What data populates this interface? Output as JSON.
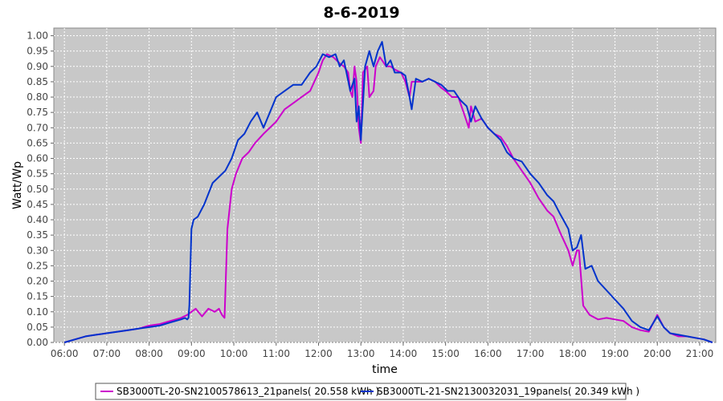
{
  "chart_data": {
    "type": "line",
    "title": "8-6-2019",
    "xlabel": "time",
    "ylabel": "Watt/Wp",
    "xlim": [
      5.75,
      21.38
    ],
    "ylim": [
      0,
      1.025
    ],
    "x_ticks": [
      "06:00",
      "07:00",
      "08:00",
      "09:00",
      "10:00",
      "11:00",
      "12:00",
      "13:00",
      "14:00",
      "15:00",
      "16:00",
      "17:00",
      "18:00",
      "19:00",
      "20:00",
      "21:00"
    ],
    "y_ticks": [
      "0.00",
      "0.05",
      "0.10",
      "0.15",
      "0.20",
      "0.25",
      "0.30",
      "0.35",
      "0.40",
      "0.45",
      "0.50",
      "0.55",
      "0.60",
      "0.65",
      "0.70",
      "0.75",
      "0.80",
      "0.85",
      "0.90",
      "0.95",
      "1.00"
    ],
    "grid": true,
    "legend_position": "bottom",
    "series": [
      {
        "name": "SB3000TL-20-SN2100578613_21panels( 20.558 kWh )",
        "color": "#cc00cc",
        "x": [
          6.0,
          6.25,
          6.5,
          6.75,
          7.0,
          7.25,
          7.5,
          7.75,
          8.0,
          8.25,
          8.5,
          8.75,
          8.9,
          9.0,
          9.1,
          9.25,
          9.4,
          9.55,
          9.65,
          9.72,
          9.78,
          9.85,
          9.95,
          10.05,
          10.2,
          10.35,
          10.5,
          10.7,
          10.85,
          11.0,
          11.2,
          11.4,
          11.6,
          11.8,
          12.0,
          12.1,
          12.2,
          12.35,
          12.5,
          12.6,
          12.7,
          12.75,
          12.8,
          12.85,
          12.9,
          12.95,
          13.0,
          13.05,
          13.15,
          13.2,
          13.3,
          13.35,
          13.45,
          13.6,
          13.7,
          13.8,
          13.95,
          14.05,
          14.15,
          14.2,
          14.3,
          14.45,
          14.6,
          14.75,
          14.9,
          15.0,
          15.15,
          15.3,
          15.45,
          15.55,
          15.6,
          15.7,
          15.85,
          16.0,
          16.15,
          16.3,
          16.45,
          16.6,
          16.8,
          17.0,
          17.2,
          17.4,
          17.55,
          17.7,
          17.9,
          18.0,
          18.1,
          18.15,
          18.25,
          18.4,
          18.6,
          18.8,
          19.0,
          19.2,
          19.4,
          19.6,
          19.8,
          20.0,
          20.15,
          20.3,
          20.5,
          20.7,
          20.9,
          21.1,
          21.3
        ],
        "y": [
          0.0,
          0.01,
          0.02,
          0.025,
          0.03,
          0.035,
          0.04,
          0.045,
          0.055,
          0.06,
          0.07,
          0.08,
          0.09,
          0.1,
          0.11,
          0.085,
          0.11,
          0.1,
          0.11,
          0.09,
          0.08,
          0.37,
          0.5,
          0.55,
          0.6,
          0.62,
          0.65,
          0.68,
          0.7,
          0.72,
          0.76,
          0.78,
          0.8,
          0.82,
          0.88,
          0.92,
          0.94,
          0.93,
          0.91,
          0.9,
          0.88,
          0.82,
          0.8,
          0.9,
          0.85,
          0.7,
          0.65,
          0.88,
          0.9,
          0.8,
          0.82,
          0.9,
          0.93,
          0.9,
          0.9,
          0.89,
          0.88,
          0.85,
          0.8,
          0.85,
          0.85,
          0.85,
          0.86,
          0.85,
          0.83,
          0.82,
          0.8,
          0.8,
          0.74,
          0.7,
          0.77,
          0.72,
          0.73,
          0.7,
          0.68,
          0.67,
          0.64,
          0.6,
          0.56,
          0.52,
          0.47,
          0.43,
          0.41,
          0.36,
          0.3,
          0.25,
          0.3,
          0.3,
          0.12,
          0.09,
          0.075,
          0.08,
          0.075,
          0.07,
          0.05,
          0.04,
          0.035,
          0.09,
          0.05,
          0.03,
          0.02,
          0.02,
          0.015,
          0.01,
          0.0
        ]
      },
      {
        "name": "SB3000TL-21-SN2130032031_19panels( 20.349 kWh )",
        "color": "#0033cc",
        "x": [
          6.0,
          6.25,
          6.5,
          6.75,
          7.0,
          7.25,
          7.5,
          7.75,
          8.0,
          8.25,
          8.5,
          8.75,
          8.85,
          8.9,
          8.93,
          8.95,
          9.0,
          9.05,
          9.15,
          9.3,
          9.5,
          9.65,
          9.8,
          9.95,
          10.1,
          10.25,
          10.4,
          10.55,
          10.7,
          10.85,
          11.0,
          11.2,
          11.4,
          11.6,
          11.8,
          11.95,
          12.1,
          12.25,
          12.4,
          12.5,
          12.6,
          12.75,
          12.85,
          12.9,
          12.95,
          13.0,
          13.1,
          13.2,
          13.3,
          13.4,
          13.5,
          13.6,
          13.7,
          13.8,
          13.95,
          14.05,
          14.15,
          14.2,
          14.3,
          14.45,
          14.6,
          14.75,
          14.9,
          15.05,
          15.2,
          15.35,
          15.5,
          15.6,
          15.7,
          15.85,
          16.0,
          16.15,
          16.3,
          16.45,
          16.6,
          16.8,
          17.0,
          17.2,
          17.4,
          17.55,
          17.7,
          17.9,
          18.0,
          18.1,
          18.2,
          18.3,
          18.45,
          18.6,
          18.8,
          19.0,
          19.2,
          19.4,
          19.6,
          19.8,
          20.0,
          20.15,
          20.3,
          20.5,
          20.7,
          20.9,
          21.1,
          21.3
        ],
        "y": [
          0.0,
          0.01,
          0.02,
          0.025,
          0.03,
          0.035,
          0.04,
          0.045,
          0.05,
          0.055,
          0.065,
          0.075,
          0.08,
          0.075,
          0.08,
          0.12,
          0.37,
          0.4,
          0.41,
          0.45,
          0.52,
          0.54,
          0.56,
          0.6,
          0.66,
          0.68,
          0.72,
          0.75,
          0.7,
          0.75,
          0.8,
          0.82,
          0.84,
          0.84,
          0.88,
          0.9,
          0.94,
          0.93,
          0.94,
          0.9,
          0.92,
          0.82,
          0.86,
          0.72,
          0.77,
          0.66,
          0.9,
          0.95,
          0.9,
          0.95,
          0.98,
          0.9,
          0.92,
          0.88,
          0.88,
          0.87,
          0.8,
          0.76,
          0.86,
          0.85,
          0.86,
          0.85,
          0.84,
          0.82,
          0.82,
          0.79,
          0.77,
          0.72,
          0.77,
          0.73,
          0.7,
          0.68,
          0.66,
          0.62,
          0.6,
          0.59,
          0.55,
          0.52,
          0.48,
          0.46,
          0.42,
          0.37,
          0.3,
          0.31,
          0.35,
          0.24,
          0.25,
          0.2,
          0.17,
          0.14,
          0.11,
          0.07,
          0.05,
          0.04,
          0.085,
          0.05,
          0.03,
          0.025,
          0.02,
          0.015,
          0.01,
          0.0
        ]
      }
    ]
  }
}
